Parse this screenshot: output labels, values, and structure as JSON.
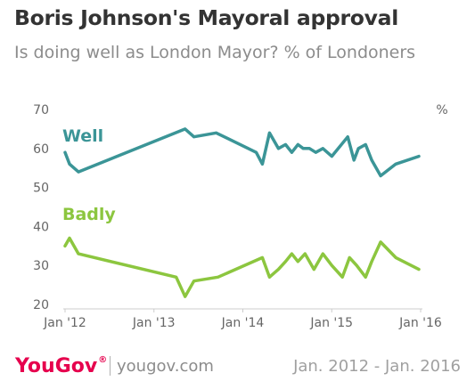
{
  "header": {
    "title": "Boris Johnson's Mayoral approval",
    "subtitle": "Is doing well as London Mayor? % of Londoners"
  },
  "footer": {
    "brand": "YouGov",
    "brand_mark": "®",
    "website": "yougov.com",
    "date_range": "Jan. 2012 - Jan. 2016"
  },
  "colors": {
    "well": "#3b9597",
    "badly": "#8cc63f",
    "axis_text": "#666666",
    "brand": "#e6004d"
  },
  "chart_data": {
    "type": "line",
    "unit_label": "%",
    "ylim": [
      20,
      70
    ],
    "yticks": [
      20,
      30,
      40,
      50,
      60,
      70
    ],
    "xlim": [
      2012.0,
      2016.0
    ],
    "xticks": [
      {
        "value": 2012.0,
        "label": "Jan '12"
      },
      {
        "value": 2013.0,
        "label": "Jan '13"
      },
      {
        "value": 2014.0,
        "label": "Jan '14"
      },
      {
        "value": 2015.0,
        "label": "Jan '15"
      },
      {
        "value": 2016.0,
        "label": "Jan '16"
      }
    ],
    "grid": false,
    "series": [
      {
        "name": "Well",
        "color_key": "well",
        "x": [
          2012.0,
          2012.05,
          2012.15,
          2013.35,
          2013.45,
          2013.7,
          2014.15,
          2014.22,
          2014.3,
          2014.4,
          2014.48,
          2014.55,
          2014.62,
          2014.68,
          2014.75,
          2014.82,
          2014.9,
          2015.0,
          2015.18,
          2015.25,
          2015.3,
          2015.38,
          2015.45,
          2015.55,
          2015.72,
          2015.98
        ],
        "values": [
          59,
          56,
          54,
          65,
          63,
          64,
          59,
          56,
          64,
          60,
          61,
          59,
          61,
          60,
          60,
          59,
          60,
          58,
          63,
          57,
          60,
          61,
          57,
          53,
          56,
          58
        ]
      },
      {
        "name": "Badly",
        "color_key": "badly",
        "x": [
          2012.0,
          2012.05,
          2012.15,
          2013.25,
          2013.35,
          2013.45,
          2013.72,
          2014.22,
          2014.3,
          2014.4,
          2014.48,
          2014.55,
          2014.62,
          2014.7,
          2014.8,
          2014.9,
          2015.0,
          2015.12,
          2015.2,
          2015.28,
          2015.38,
          2015.45,
          2015.55,
          2015.72,
          2015.98
        ],
        "values": [
          35,
          37,
          33,
          27,
          22,
          26,
          27,
          32,
          27,
          29,
          31,
          33,
          31,
          33,
          29,
          33,
          30,
          27,
          32,
          30,
          27,
          31,
          36,
          32,
          29
        ]
      }
    ]
  }
}
